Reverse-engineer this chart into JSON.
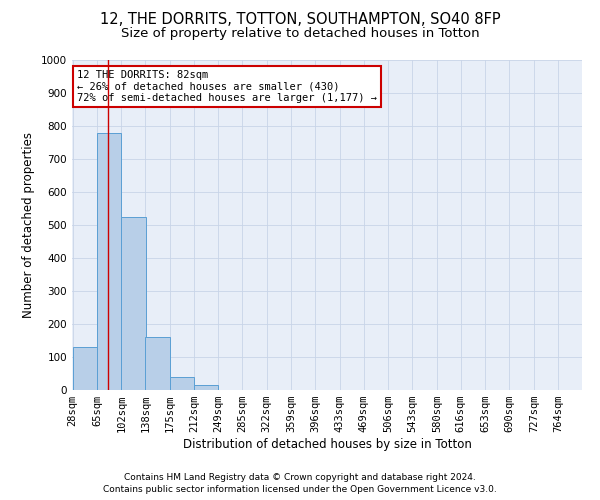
{
  "title": "12, THE DORRITS, TOTTON, SOUTHAMPTON, SO40 8FP",
  "subtitle": "Size of property relative to detached houses in Totton",
  "xlabel": "Distribution of detached houses by size in Totton",
  "ylabel": "Number of detached properties",
  "footer1": "Contains HM Land Registry data © Crown copyright and database right 2024.",
  "footer2": "Contains public sector information licensed under the Open Government Licence v3.0.",
  "bin_edges": [
    28,
    65,
    102,
    138,
    175,
    212,
    249,
    285,
    322,
    359,
    396,
    433,
    469,
    506,
    543,
    580,
    616,
    653,
    690,
    727,
    764
  ],
  "bar_heights": [
    130,
    780,
    525,
    160,
    38,
    15,
    0,
    0,
    0,
    0,
    0,
    0,
    0,
    0,
    0,
    0,
    0,
    0,
    0,
    0
  ],
  "bar_color": "#b8cfe8",
  "bar_edge_color": "#5a9fd4",
  "bar_linewidth": 0.7,
  "red_line_x": 82,
  "red_line_color": "#cc0000",
  "annotation_line1": "12 THE DORRITS: 82sqm",
  "annotation_line2": "← 26% of detached houses are smaller (430)",
  "annotation_line3": "72% of semi-detached houses are larger (1,177) →",
  "annotation_box_color": "#cc0000",
  "ylim": [
    0,
    1000
  ],
  "yticks": [
    0,
    100,
    200,
    300,
    400,
    500,
    600,
    700,
    800,
    900,
    1000
  ],
  "grid_color": "#c8d4e8",
  "background_color": "#e8eef8",
  "title_fontsize": 10.5,
  "subtitle_fontsize": 9.5,
  "axis_label_fontsize": 8.5,
  "tick_fontsize": 7.5,
  "annotation_fontsize": 7.5,
  "footer_fontsize": 6.5
}
